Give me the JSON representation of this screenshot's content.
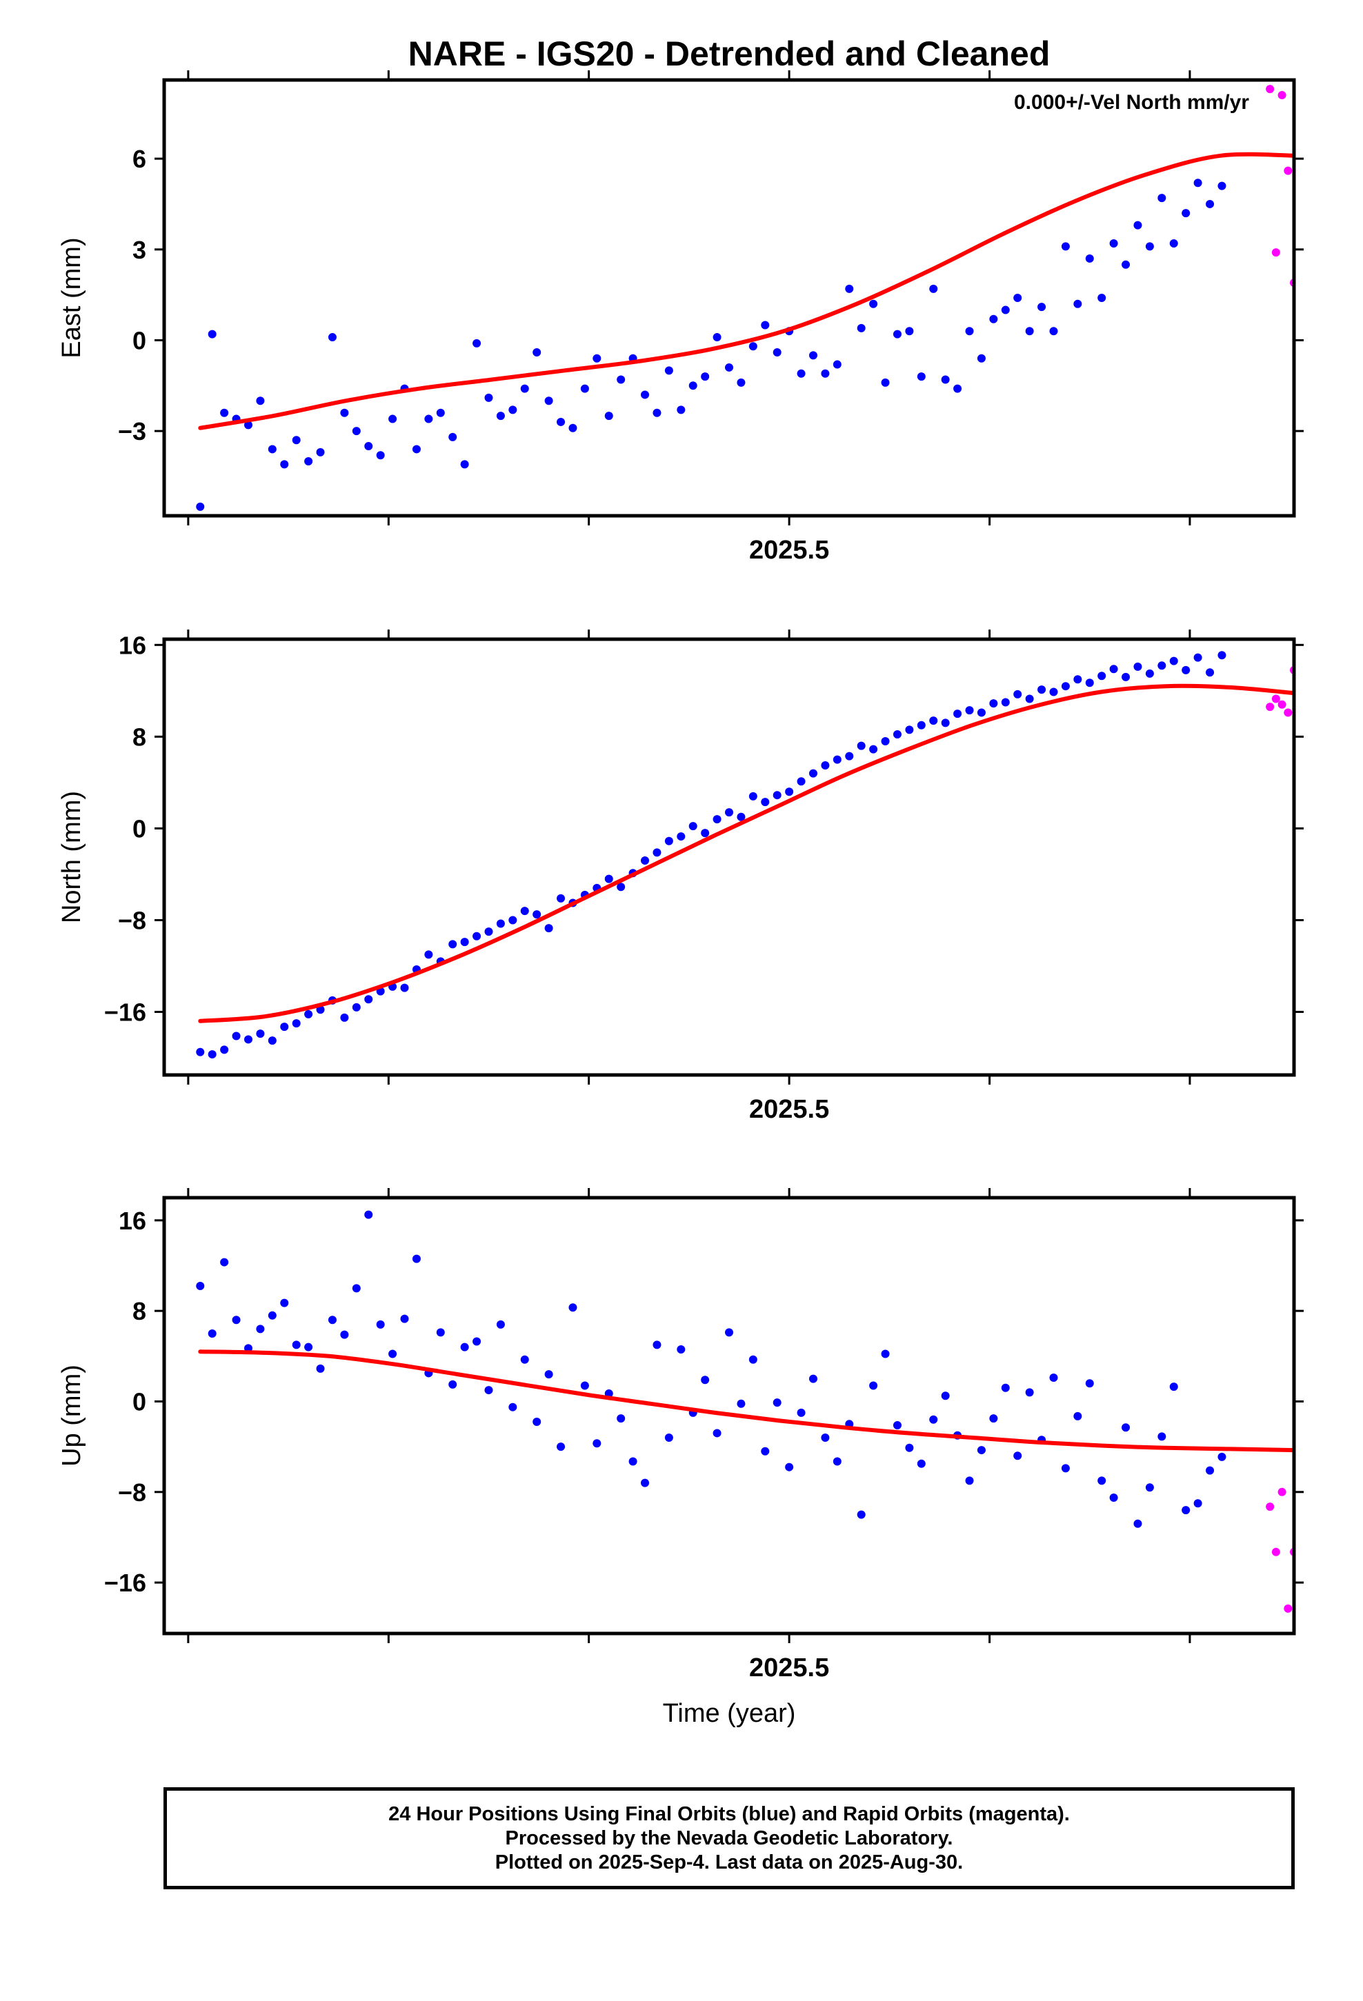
{
  "title": "NARE - IGS20 - Detrended and Cleaned",
  "colors": {
    "final_orbits": "#0000ff",
    "rapid_orbits": "#ff00ff",
    "fit": "#ff0000",
    "frame": "#000000"
  },
  "chart_data": [
    {
      "type": "scatter",
      "panel": "east",
      "ylabel": "East (mm)",
      "annotation": "0.000+/-Vel North mm/yr",
      "ylim": [
        -5.8,
        8.6
      ],
      "yticks": [
        -3,
        0,
        3,
        6
      ],
      "xlim": [
        2024.98,
        2025.92
      ],
      "xticks": [
        2025.0,
        2025.1667,
        2025.3333,
        2025.5,
        2025.6667,
        2025.8333
      ],
      "xtick_labels": [
        {
          "value": 2025.5,
          "label": "2025.5"
        }
      ],
      "series": [
        {
          "role": "final",
          "x": [
            2025.01,
            2025.02,
            2025.03,
            2025.04,
            2025.05,
            2025.06,
            2025.07,
            2025.08,
            2025.09,
            2025.1,
            2025.11,
            2025.12,
            2025.13,
            2025.14,
            2025.15,
            2025.16,
            2025.17,
            2025.18,
            2025.19,
            2025.2,
            2025.21,
            2025.22,
            2025.23,
            2025.24,
            2025.25,
            2025.26,
            2025.27,
            2025.28,
            2025.29,
            2025.3,
            2025.31,
            2025.32,
            2025.33,
            2025.34,
            2025.35,
            2025.36,
            2025.37,
            2025.38,
            2025.39,
            2025.4,
            2025.41,
            2025.42,
            2025.43,
            2025.44,
            2025.45,
            2025.46,
            2025.47,
            2025.48,
            2025.49,
            2025.5,
            2025.51,
            2025.52,
            2025.53,
            2025.54,
            2025.55,
            2025.56,
            2025.57,
            2025.58,
            2025.59,
            2025.6,
            2025.61,
            2025.62,
            2025.63,
            2025.64,
            2025.65,
            2025.66,
            2025.67,
            2025.68,
            2025.69,
            2025.7,
            2025.71,
            2025.72,
            2025.73,
            2025.74,
            2025.75,
            2025.76,
            2025.77,
            2025.78,
            2025.79,
            2025.8,
            2025.81,
            2025.82,
            2025.83,
            2025.84,
            2025.85,
            2025.86
          ],
          "y": [
            -5.5,
            0.2,
            -2.4,
            -2.6,
            -2.8,
            -2.0,
            -3.6,
            -4.1,
            -3.3,
            -4.0,
            -3.7,
            0.1,
            -2.4,
            -3.0,
            -3.5,
            -3.8,
            -2.6,
            -1.6,
            -3.6,
            -2.6,
            -2.4,
            -3.2,
            -4.1,
            -0.1,
            -1.9,
            -2.5,
            -2.3,
            -1.6,
            -0.4,
            -2.0,
            -2.7,
            -2.9,
            -1.6,
            -0.6,
            -2.5,
            -1.3,
            -0.6,
            -1.8,
            -2.4,
            -1.0,
            -2.3,
            -1.5,
            -1.2,
            0.1,
            -0.9,
            -1.4,
            -0.2,
            0.5,
            -0.4,
            0.3,
            -1.1,
            -0.5,
            -1.1,
            -0.8,
            1.7,
            0.4,
            1.2,
            -1.4,
            0.2,
            0.3,
            -1.2,
            1.7,
            -1.3,
            -1.6,
            0.3,
            -0.6,
            0.7,
            1.0,
            1.4,
            0.3,
            1.1,
            0.3,
            3.1,
            1.2,
            2.7,
            1.4,
            3.2,
            2.5,
            3.8,
            3.1,
            4.7,
            3.2,
            4.2,
            5.2,
            4.5,
            5.1
          ]
        },
        {
          "role": "rapid",
          "x": [
            2025.9,
            2025.905,
            2025.91,
            2025.915,
            2025.92
          ],
          "y": [
            8.3,
            2.9,
            8.1,
            5.6,
            1.9
          ]
        }
      ],
      "fit": {
        "x0": 2025.01,
        "x1": 2025.92,
        "y": [
          -2.9,
          -2.5,
          -2.0,
          -1.6,
          -1.3,
          -1.0,
          -0.7,
          -0.3,
          0.3,
          1.2,
          2.3,
          3.5,
          4.6,
          5.5,
          6.1,
          6.1
        ]
      }
    },
    {
      "type": "scatter",
      "panel": "north",
      "ylabel": "North (mm)",
      "ylim": [
        -21.5,
        16.5
      ],
      "yticks": [
        -16,
        -8,
        0,
        8,
        16
      ],
      "xlim": [
        2024.98,
        2025.92
      ],
      "xticks": [
        2025.0,
        2025.1667,
        2025.3333,
        2025.5,
        2025.6667,
        2025.8333
      ],
      "xtick_labels": [
        {
          "value": 2025.5,
          "label": "2025.5"
        }
      ],
      "series": [
        {
          "role": "final",
          "x": [
            2025.01,
            2025.02,
            2025.03,
            2025.04,
            2025.05,
            2025.06,
            2025.07,
            2025.08,
            2025.09,
            2025.1,
            2025.11,
            2025.12,
            2025.13,
            2025.14,
            2025.15,
            2025.16,
            2025.17,
            2025.18,
            2025.19,
            2025.2,
            2025.21,
            2025.22,
            2025.23,
            2025.24,
            2025.25,
            2025.26,
            2025.27,
            2025.28,
            2025.29,
            2025.3,
            2025.31,
            2025.32,
            2025.33,
            2025.34,
            2025.35,
            2025.36,
            2025.37,
            2025.38,
            2025.39,
            2025.4,
            2025.41,
            2025.42,
            2025.43,
            2025.44,
            2025.45,
            2025.46,
            2025.47,
            2025.48,
            2025.49,
            2025.5,
            2025.51,
            2025.52,
            2025.53,
            2025.54,
            2025.55,
            2025.56,
            2025.57,
            2025.58,
            2025.59,
            2025.6,
            2025.61,
            2025.62,
            2025.63,
            2025.64,
            2025.65,
            2025.66,
            2025.67,
            2025.68,
            2025.69,
            2025.7,
            2025.71,
            2025.72,
            2025.73,
            2025.74,
            2025.75,
            2025.76,
            2025.77,
            2025.78,
            2025.79,
            2025.8,
            2025.81,
            2025.82,
            2025.83,
            2025.84,
            2025.85,
            2025.86
          ],
          "y": [
            -19.5,
            -19.7,
            -19.3,
            -18.1,
            -18.4,
            -17.9,
            -18.5,
            -17.3,
            -17.0,
            -16.2,
            -15.8,
            -15.0,
            -16.5,
            -15.6,
            -14.9,
            -14.2,
            -13.8,
            -13.9,
            -12.3,
            -11.0,
            -11.6,
            -10.1,
            -9.9,
            -9.4,
            -9.0,
            -8.3,
            -8.0,
            -7.2,
            -7.5,
            -8.7,
            -6.1,
            -6.5,
            -5.8,
            -5.2,
            -4.4,
            -5.1,
            -3.9,
            -2.8,
            -2.1,
            -1.1,
            -0.7,
            0.2,
            -0.4,
            0.8,
            1.4,
            1.0,
            2.8,
            2.3,
            2.9,
            3.2,
            4.1,
            4.8,
            5.5,
            6.0,
            6.3,
            7.2,
            6.9,
            7.6,
            8.2,
            8.6,
            9.0,
            9.4,
            9.2,
            10.0,
            10.3,
            10.1,
            10.9,
            11.0,
            11.7,
            11.3,
            12.1,
            11.9,
            12.4,
            13.0,
            12.7,
            13.3,
            13.9,
            13.2,
            14.1,
            13.5,
            14.2,
            14.6,
            13.8,
            14.9,
            13.6,
            15.1
          ]
        },
        {
          "role": "rapid",
          "x": [
            2025.9,
            2025.905,
            2025.91,
            2025.915,
            2025.92
          ],
          "y": [
            10.6,
            11.3,
            10.8,
            10.1,
            13.8
          ]
        }
      ],
      "fit": {
        "x0": 2025.01,
        "x1": 2025.92,
        "y": [
          -16.8,
          -16.4,
          -15.2,
          -13.4,
          -11.2,
          -8.7,
          -6.0,
          -3.3,
          -0.6,
          2.0,
          4.6,
          6.9,
          9.0,
          10.7,
          11.9,
          12.4,
          12.3,
          11.8
        ]
      }
    },
    {
      "type": "scatter",
      "panel": "up",
      "ylabel": "Up (mm)",
      "xlabel": "Time (year)",
      "ylim": [
        -20.5,
        18.0
      ],
      "yticks": [
        -16,
        -8,
        0,
        8,
        16
      ],
      "xlim": [
        2024.98,
        2025.92
      ],
      "xticks": [
        2025.0,
        2025.1667,
        2025.3333,
        2025.5,
        2025.6667,
        2025.8333
      ],
      "xtick_labels": [
        {
          "value": 2025.5,
          "label": "2025.5"
        }
      ],
      "series": [
        {
          "role": "final",
          "x": [
            2025.01,
            2025.02,
            2025.03,
            2025.04,
            2025.05,
            2025.06,
            2025.07,
            2025.08,
            2025.09,
            2025.1,
            2025.11,
            2025.12,
            2025.13,
            2025.14,
            2025.15,
            2025.16,
            2025.17,
            2025.18,
            2025.19,
            2025.2,
            2025.21,
            2025.22,
            2025.23,
            2025.24,
            2025.25,
            2025.26,
            2025.27,
            2025.28,
            2025.29,
            2025.3,
            2025.31,
            2025.32,
            2025.33,
            2025.34,
            2025.35,
            2025.36,
            2025.37,
            2025.38,
            2025.39,
            2025.4,
            2025.41,
            2025.42,
            2025.43,
            2025.44,
            2025.45,
            2025.46,
            2025.47,
            2025.48,
            2025.49,
            2025.5,
            2025.51,
            2025.52,
            2025.53,
            2025.54,
            2025.55,
            2025.56,
            2025.57,
            2025.58,
            2025.59,
            2025.6,
            2025.61,
            2025.62,
            2025.63,
            2025.64,
            2025.65,
            2025.66,
            2025.67,
            2025.68,
            2025.69,
            2025.7,
            2025.71,
            2025.72,
            2025.73,
            2025.74,
            2025.75,
            2025.76,
            2025.77,
            2025.78,
            2025.79,
            2025.8,
            2025.81,
            2025.82,
            2025.83,
            2025.84,
            2025.85,
            2025.86
          ],
          "y": [
            10.2,
            6.0,
            12.3,
            7.2,
            4.7,
            6.4,
            7.6,
            8.7,
            5.0,
            4.8,
            2.9,
            7.2,
            5.9,
            10.0,
            16.5,
            6.8,
            4.2,
            7.3,
            12.6,
            2.5,
            6.1,
            1.5,
            4.8,
            5.3,
            1.0,
            6.8,
            -0.5,
            3.7,
            -1.8,
            2.4,
            -4.0,
            8.3,
            1.4,
            -3.7,
            0.7,
            -1.5,
            -5.3,
            -7.2,
            5.0,
            -3.2,
            4.6,
            -1.0,
            1.9,
            -2.8,
            6.1,
            -0.2,
            3.7,
            -4.4,
            -0.1,
            -5.8,
            -1.0,
            2.0,
            -3.2,
            -5.3,
            -2.0,
            -10.0,
            1.4,
            4.2,
            -2.1,
            -4.1,
            -5.5,
            -1.6,
            0.5,
            -3.0,
            -7.0,
            -4.3,
            -1.5,
            1.2,
            -4.8,
            0.8,
            -3.4,
            2.1,
            -5.9,
            -1.3,
            1.6,
            -7.0,
            -8.5,
            -2.3,
            -10.8,
            -7.6,
            -3.1,
            1.3,
            -9.6,
            -9.0,
            -6.1,
            -4.9
          ]
        },
        {
          "role": "rapid",
          "x": [
            2025.9,
            2025.905,
            2025.91,
            2025.915,
            2025.92
          ],
          "y": [
            -9.3,
            -13.3,
            -8.0,
            -18.3,
            -13.3
          ]
        }
      ],
      "fit": {
        "x0": 2025.01,
        "x1": 2025.92,
        "y": [
          4.4,
          4.3,
          4.0,
          3.3,
          2.4,
          1.5,
          0.6,
          -0.2,
          -1.0,
          -1.7,
          -2.3,
          -2.8,
          -3.2,
          -3.6,
          -3.9,
          -4.1,
          -4.2,
          -4.3
        ]
      }
    }
  ],
  "footer": {
    "line1": "24 Hour Positions Using Final Orbits (blue) and Rapid Orbits (magenta).",
    "line2": "Processed by the Nevada Geodetic Laboratory.",
    "line3": "Plotted on 2025-Sep-4. Last data on 2025-Aug-30."
  }
}
